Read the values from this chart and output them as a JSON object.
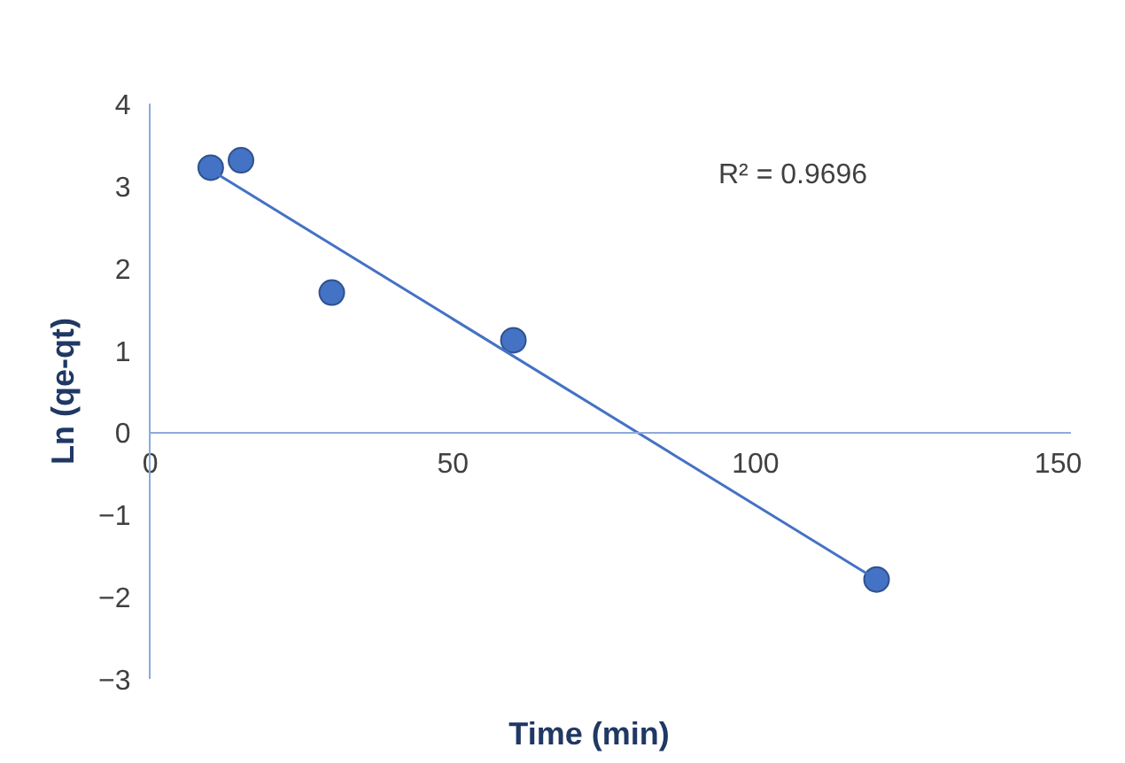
{
  "chart_data": {
    "type": "scatter",
    "xlabel": "Time (min)",
    "ylabel": "Ln (qe-qt)",
    "x": [
      10,
      15,
      30,
      60,
      120
    ],
    "series": [
      {
        "color": "#4472c4",
        "values": [
          3.22,
          3.31,
          1.7,
          1.12,
          -1.79
        ],
        "marker": "circle"
      },
      {
        "type": "line",
        "color": "#4472c4",
        "x": [
          10,
          120
        ],
        "values": [
          3.19,
          -1.79
        ]
      }
    ],
    "annotations": [
      "R² = 0.9696"
    ],
    "xlim": [
      0,
      152
    ],
    "ylim": [
      -3,
      4
    ],
    "xticks": [
      0,
      50,
      100,
      150
    ],
    "yticks": [
      -3,
      -2,
      -1,
      0,
      1,
      2,
      3,
      4
    ],
    "grid": false
  }
}
